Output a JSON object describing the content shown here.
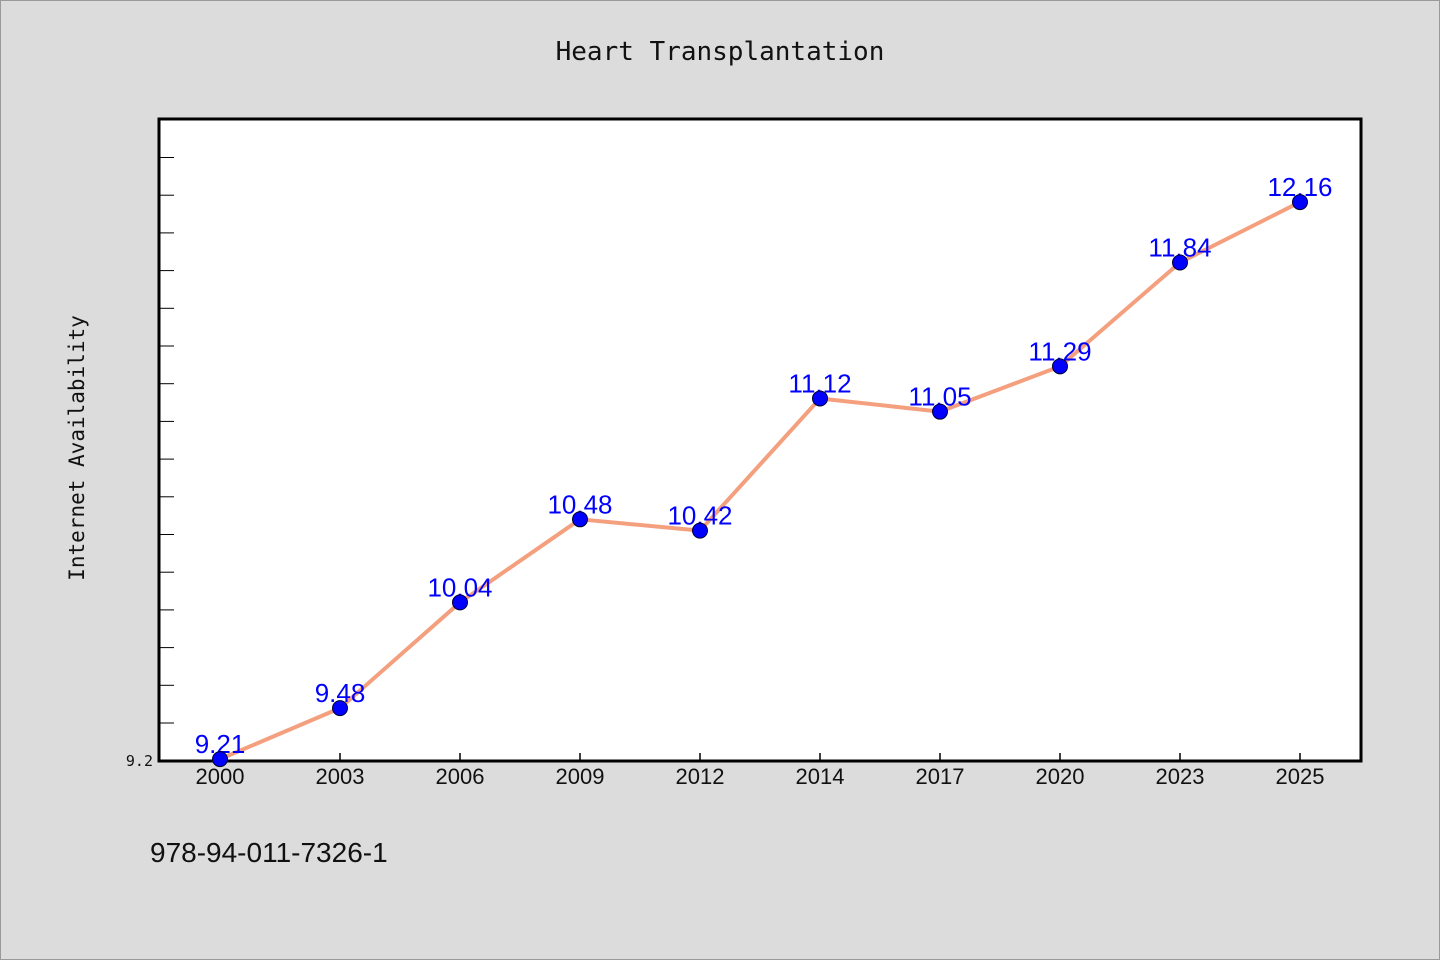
{
  "chart_data": {
    "type": "line",
    "title": "Heart Transplantation",
    "xlabel": "",
    "ylabel": "Internet Availability",
    "categories": [
      "2000",
      "2003",
      "2006",
      "2009",
      "2012",
      "2014",
      "2017",
      "2020",
      "2023",
      "2025"
    ],
    "series": [
      {
        "values": [
          9.21,
          9.48,
          10.04,
          10.48,
          10.42,
          11.12,
          11.05,
          11.29,
          11.84,
          12.16
        ],
        "line_color": "#f4a07f",
        "marker_color": "#0000ff",
        "label_color": "#0000ff"
      }
    ],
    "ylim": [
      9.2,
      12.6
    ],
    "yticklabels_shown": [
      "9.2"
    ],
    "grid": false,
    "legend": "none"
  },
  "footer": {
    "isbn": "978-94-011-7326-1"
  },
  "colors": {
    "background": "#dcdcdc",
    "plot_background": "#ffffff",
    "axis": "#000000"
  }
}
